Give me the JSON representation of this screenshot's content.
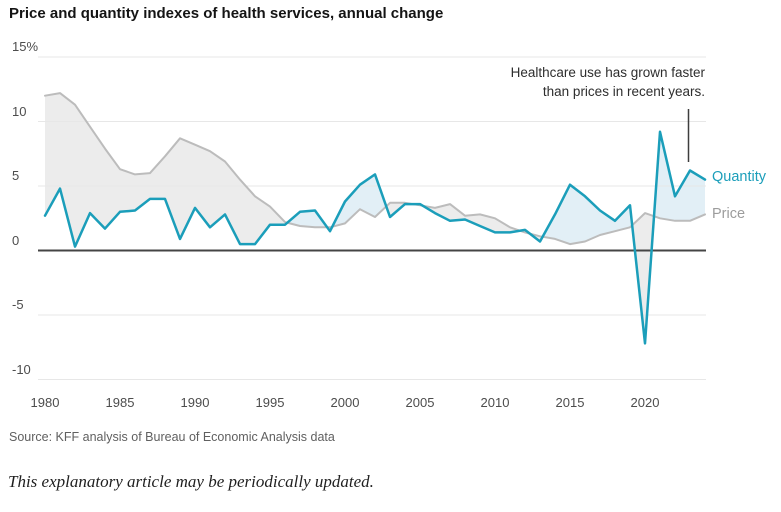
{
  "title": "Price and quantity indexes of health services, annual change",
  "annotation": {
    "line1": "Healthcare use has grown faster",
    "line2": "than prices in recent years."
  },
  "legend": {
    "quantity_label": "Quantity",
    "price_label": "Price"
  },
  "source": "Source: KFF analysis of Bureau of Economic Analysis data",
  "footer_note": "This explanatory article may be periodically updated.",
  "colors": {
    "quantity": "#1b9eba",
    "price_line": "#bcbcbc",
    "price_label": "#9c9c9c",
    "fill_price_above": "#ececec",
    "fill_quantity_above": "#e2eff6",
    "grid": "#e7e7e7",
    "zero_line": "#454545",
    "pointer": "#3d3d3d"
  },
  "chart_data": {
    "type": "line",
    "title": "Price and quantity indexes of health services, annual change",
    "x": [
      1980,
      1981,
      1982,
      1983,
      1984,
      1985,
      1986,
      1987,
      1988,
      1989,
      1990,
      1991,
      1992,
      1993,
      1994,
      1995,
      1996,
      1997,
      1998,
      1999,
      2000,
      2001,
      2002,
      2003,
      2004,
      2005,
      2006,
      2007,
      2008,
      2009,
      2010,
      2011,
      2012,
      2013,
      2014,
      2015,
      2016,
      2017,
      2018,
      2019,
      2020,
      2021,
      2022,
      2023,
      2024
    ],
    "series": [
      {
        "name": "Quantity",
        "values": [
          2.7,
          4.8,
          0.3,
          2.9,
          1.7,
          3.0,
          3.1,
          4.0,
          4.0,
          0.9,
          3.3,
          1.8,
          2.8,
          0.5,
          0.5,
          2.0,
          2.0,
          3.0,
          3.1,
          1.5,
          3.8,
          5.1,
          5.9,
          2.6,
          3.6,
          3.6,
          2.9,
          2.3,
          2.4,
          1.9,
          1.4,
          1.4,
          1.6,
          0.7,
          2.8,
          5.1,
          4.2,
          3.1,
          2.3,
          3.5,
          -7.2,
          9.2,
          4.2,
          6.2,
          5.5
        ]
      },
      {
        "name": "Price",
        "values": [
          12.0,
          12.2,
          11.3,
          9.6,
          7.9,
          6.3,
          5.9,
          6.0,
          7.3,
          8.7,
          8.2,
          7.7,
          6.9,
          5.5,
          4.2,
          3.4,
          2.2,
          1.9,
          1.8,
          1.8,
          2.1,
          3.2,
          2.6,
          3.7,
          3.7,
          3.5,
          3.3,
          3.6,
          2.7,
          2.8,
          2.5,
          1.8,
          1.4,
          1.1,
          0.9,
          0.5,
          0.7,
          1.2,
          1.5,
          1.8,
          2.9,
          2.5,
          2.3,
          2.3,
          2.8
        ]
      }
    ],
    "x_ticks": [
      1980,
      1985,
      1990,
      1995,
      2000,
      2005,
      2010,
      2015,
      2020
    ],
    "y_ticks": [
      {
        "value": 15,
        "label": "15%"
      },
      {
        "value": 10,
        "label": "10"
      },
      {
        "value": 5,
        "label": "5"
      },
      {
        "value": 0,
        "label": "0"
      },
      {
        "value": -5,
        "label": "-5"
      },
      {
        "value": -10,
        "label": "-10"
      }
    ],
    "ylim": [
      -10,
      15
    ],
    "grid": true,
    "legend_position": "right",
    "fill_between_series": true,
    "annotation": "Healthcare use has grown faster than prices in recent years."
  }
}
